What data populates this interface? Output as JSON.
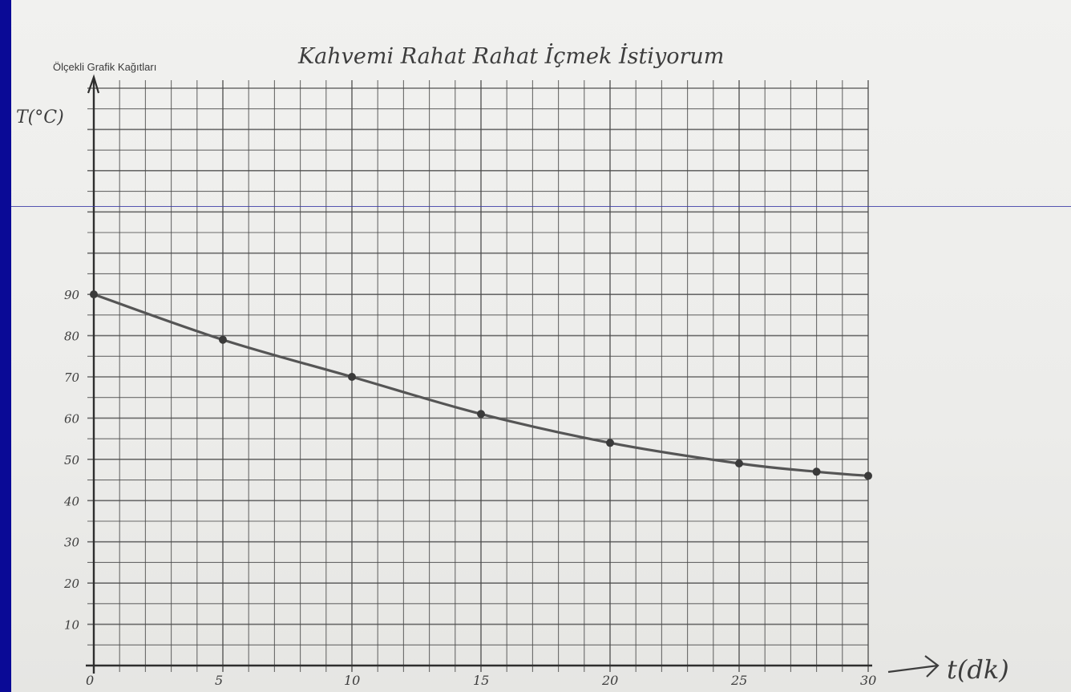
{
  "page": {
    "printed_label": "Ölçekli Grafik Kağıtları"
  },
  "chart_data": {
    "type": "line",
    "title": "Kahvemi Rahat Rahat İçmek İstiyorum",
    "xlabel": "t(dk)",
    "ylabel": "T(°C)",
    "xlim": [
      0,
      30
    ],
    "ylim": [
      0,
      140
    ],
    "x_ticks": [
      0,
      5,
      10,
      15,
      20,
      25,
      30
    ],
    "x_tick_labels": [
      "0",
      "5",
      "10",
      "15",
      "20",
      "25",
      "30"
    ],
    "y_ticks": [
      10,
      20,
      30,
      40,
      50,
      60,
      70,
      80,
      90
    ],
    "y_tick_labels": [
      "10",
      "20",
      "30",
      "40",
      "50",
      "60",
      "70",
      "80",
      "90"
    ],
    "grid": true,
    "series": [
      {
        "x": [
          0,
          5,
          10,
          15,
          20,
          25,
          28,
          30
        ],
        "y": [
          90,
          79,
          70,
          61,
          54,
          49,
          47,
          46
        ],
        "color": "#555555"
      }
    ]
  }
}
